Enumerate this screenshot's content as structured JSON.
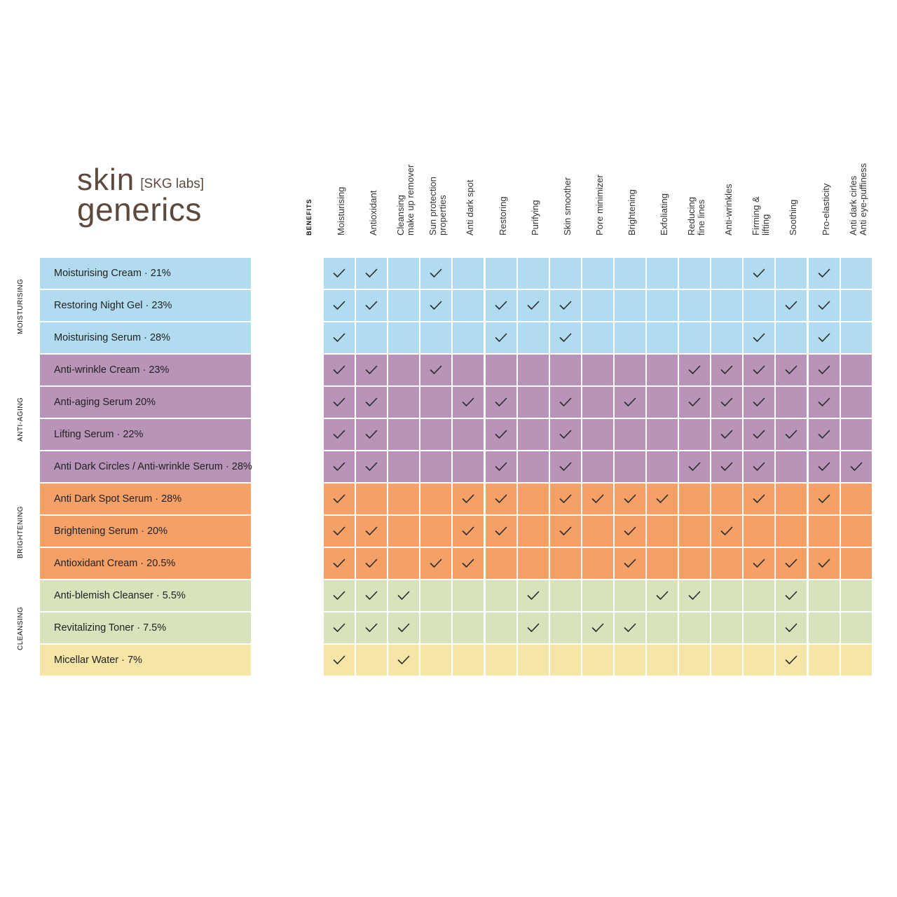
{
  "brand": {
    "word1": "skin",
    "bracket": "[SKG labs]",
    "word2": "generics"
  },
  "benefits_label": "BENEFITS",
  "colors": {
    "moisturising": "#b1dcef",
    "anti-aging": "#b994b9",
    "brightening": "#f4a067",
    "cleansing": "#d7e3bc",
    "micellar": "#f5e5a6"
  },
  "columns": [
    [
      "Moisturising"
    ],
    [
      "Antioxidant"
    ],
    [
      "Cleansing",
      "make up remover"
    ],
    [
      "Sun protection",
      "properties"
    ],
    [
      "Anti dark spot"
    ],
    [
      "Restoring"
    ],
    [
      "Purifying"
    ],
    [
      "Skin smoother"
    ],
    [
      "Pore minimizer"
    ],
    [
      "Brightening"
    ],
    [
      "Exfoliating"
    ],
    [
      "Reducing",
      "fine lines"
    ],
    [
      "Anti-wrinkles"
    ],
    [
      "Firming &",
      "lifting"
    ],
    [
      "Soothing"
    ],
    [
      "Pro-elasticity"
    ],
    [
      "Anti dark cirles",
      "Anti eye-puffiness"
    ]
  ],
  "categories": [
    {
      "label": "MOISTURISING",
      "first_row": 0,
      "row_count": 3
    },
    {
      "label": "ANTI-AGING",
      "first_row": 3,
      "row_count": 4
    },
    {
      "label": "BRIGHTENING",
      "first_row": 7,
      "row_count": 3
    },
    {
      "label": "CLEANSING",
      "first_row": 10,
      "row_count": 3
    }
  ],
  "products": [
    {
      "name": "Moisturising Cream · 21%",
      "color": "moisturising",
      "checks": [
        1,
        1,
        0,
        1,
        0,
        0,
        0,
        0,
        0,
        0,
        0,
        0,
        0,
        1,
        0,
        1,
        0
      ]
    },
    {
      "name": "Restoring Night Gel · 23%",
      "color": "moisturising",
      "checks": [
        1,
        1,
        0,
        1,
        0,
        1,
        1,
        1,
        0,
        0,
        0,
        0,
        0,
        0,
        1,
        1,
        0
      ]
    },
    {
      "name": "Moisturising Serum · 28%",
      "color": "moisturising",
      "checks": [
        1,
        0,
        0,
        0,
        0,
        1,
        0,
        1,
        0,
        0,
        0,
        0,
        0,
        1,
        0,
        1,
        0
      ]
    },
    {
      "name": "Anti-wrinkle Cream · 23%",
      "color": "anti-aging",
      "checks": [
        1,
        1,
        0,
        1,
        0,
        0,
        0,
        0,
        0,
        0,
        0,
        1,
        1,
        1,
        1,
        1,
        0
      ]
    },
    {
      "name": "Anti-aging Serum 20%",
      "color": "anti-aging",
      "checks": [
        1,
        1,
        0,
        0,
        1,
        1,
        0,
        1,
        0,
        1,
        0,
        1,
        1,
        1,
        0,
        1,
        0
      ]
    },
    {
      "name": "Lifting Serum · 22%",
      "color": "anti-aging",
      "checks": [
        1,
        1,
        0,
        0,
        0,
        1,
        0,
        1,
        0,
        0,
        0,
        0,
        1,
        1,
        1,
        1,
        0
      ]
    },
    {
      "name": "Anti Dark Circles / Anti-wrinkle Serum · 28%",
      "color": "anti-aging",
      "checks": [
        1,
        1,
        0,
        0,
        0,
        1,
        0,
        1,
        0,
        0,
        0,
        1,
        1,
        1,
        0,
        1,
        1
      ]
    },
    {
      "name": "Anti Dark Spot Serum · 28%",
      "color": "brightening",
      "checks": [
        1,
        0,
        0,
        0,
        1,
        1,
        0,
        1,
        1,
        1,
        1,
        0,
        0,
        1,
        0,
        1,
        0
      ]
    },
    {
      "name": "Brightening Serum · 20%",
      "color": "brightening",
      "checks": [
        1,
        1,
        0,
        0,
        1,
        1,
        0,
        1,
        0,
        1,
        0,
        0,
        1,
        0,
        0,
        0,
        0
      ]
    },
    {
      "name": "Antioxidant Cream · 20.5%",
      "color": "brightening",
      "checks": [
        1,
        1,
        0,
        1,
        1,
        0,
        0,
        0,
        0,
        1,
        0,
        0,
        0,
        1,
        1,
        1,
        0
      ]
    },
    {
      "name": "Anti-blemish Cleanser · 5.5%",
      "color": "cleansing",
      "checks": [
        1,
        1,
        1,
        0,
        0,
        0,
        1,
        0,
        0,
        0,
        1,
        1,
        0,
        0,
        1,
        0,
        0
      ]
    },
    {
      "name": "Revitalizing Toner · 7.5%",
      "color": "cleansing",
      "checks": [
        1,
        1,
        1,
        0,
        0,
        0,
        1,
        0,
        1,
        1,
        0,
        0,
        0,
        0,
        1,
        0,
        0
      ]
    },
    {
      "name": "Micellar Water · 7%",
      "color": "micellar",
      "checks": [
        1,
        0,
        1,
        0,
        0,
        0,
        0,
        0,
        0,
        0,
        0,
        0,
        0,
        0,
        1,
        0,
        0
      ]
    }
  ]
}
